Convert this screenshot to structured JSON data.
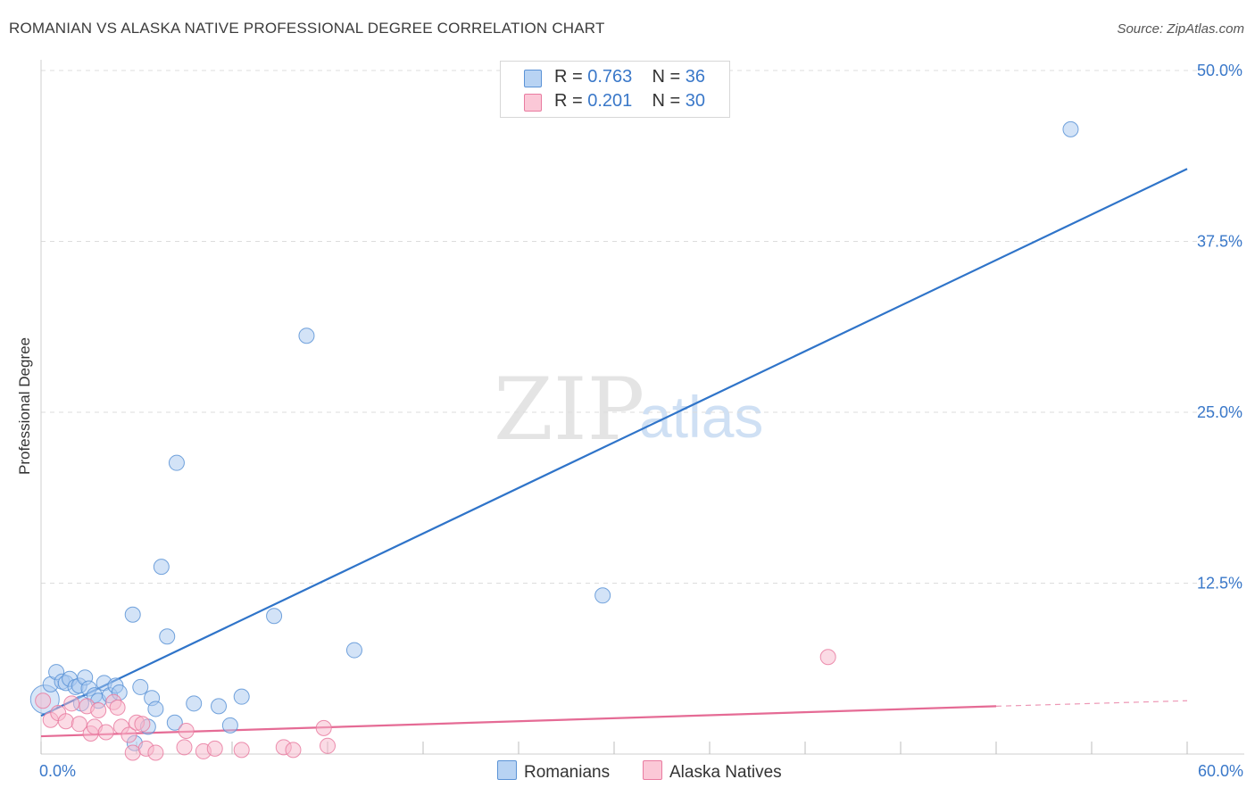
{
  "title": "ROMANIAN VS ALASKA NATIVE PROFESSIONAL DEGREE CORRELATION CHART",
  "source": "Source: ZipAtlas.com",
  "watermark": {
    "zip": "ZIP",
    "atlas": "atlas"
  },
  "legend_top": [
    {
      "r_label": "R = ",
      "r_value": "0.763",
      "n_label": "N = ",
      "n_value": "36"
    },
    {
      "r_label": "R = ",
      "r_value": "0.201",
      "n_label": "N = ",
      "n_value": "30"
    }
  ],
  "colors": {
    "blue_fill": "#a8c8ef",
    "blue_stroke": "#5b93d6",
    "blue_line": "#2f74c9",
    "pink_fill": "#f7b7cb",
    "pink_stroke": "#e97ba0",
    "pink_line": "#e56b95",
    "grid": "#dcdcdc",
    "tick_text": "#3a78c9"
  },
  "chart_data": {
    "type": "scatter",
    "title": "ROMANIAN VS ALASKA NATIVE PROFESSIONAL DEGREE CORRELATION CHART",
    "xlabel": "",
    "ylabel": "Professional Degree",
    "xlim": [
      0,
      60
    ],
    "ylim": [
      0,
      50
    ],
    "x_tick_labels": [
      "0.0%",
      "60.0%"
    ],
    "y_ticks": [
      12.5,
      25.0,
      37.5,
      50.0
    ],
    "y_tick_labels": [
      "12.5%",
      "25.0%",
      "37.5%",
      "50.0%"
    ],
    "legend_position": "top-center",
    "series": [
      {
        "name": "Romanians",
        "r": 0.763,
        "n": 36,
        "points": [
          [
            0.2,
            4.0
          ],
          [
            0.5,
            5.1
          ],
          [
            0.8,
            6.0
          ],
          [
            1.1,
            5.3
          ],
          [
            1.3,
            5.2
          ],
          [
            1.5,
            5.5
          ],
          [
            1.8,
            4.9
          ],
          [
            2.0,
            5.0
          ],
          [
            2.1,
            3.7
          ],
          [
            2.3,
            5.6
          ],
          [
            2.5,
            4.8
          ],
          [
            2.8,
            4.3
          ],
          [
            3.0,
            3.9
          ],
          [
            3.3,
            5.2
          ],
          [
            3.6,
            4.3
          ],
          [
            3.9,
            5.0
          ],
          [
            4.1,
            4.5
          ],
          [
            4.8,
            10.2
          ],
          [
            4.9,
            0.8
          ],
          [
            5.2,
            4.9
          ],
          [
            5.6,
            2.0
          ],
          [
            5.8,
            4.1
          ],
          [
            6.0,
            3.3
          ],
          [
            6.3,
            13.7
          ],
          [
            6.6,
            8.6
          ],
          [
            7.0,
            2.3
          ],
          [
            7.1,
            21.3
          ],
          [
            8.0,
            3.7
          ],
          [
            9.3,
            3.5
          ],
          [
            9.9,
            2.1
          ],
          [
            10.5,
            4.2
          ],
          [
            12.2,
            10.1
          ],
          [
            13.9,
            30.6
          ],
          [
            16.4,
            7.6
          ],
          [
            29.4,
            11.6
          ],
          [
            53.9,
            45.7
          ]
        ]
      },
      {
        "name": "Alaska Natives",
        "r": 0.201,
        "n": 30,
        "points": [
          [
            0.1,
            3.9
          ],
          [
            0.5,
            2.5
          ],
          [
            0.9,
            3.0
          ],
          [
            1.3,
            2.4
          ],
          [
            1.6,
            3.7
          ],
          [
            2.0,
            2.2
          ],
          [
            2.4,
            3.5
          ],
          [
            2.6,
            1.5
          ],
          [
            2.8,
            2.0
          ],
          [
            3.0,
            3.2
          ],
          [
            3.4,
            1.6
          ],
          [
            3.8,
            3.8
          ],
          [
            4.0,
            3.4
          ],
          [
            4.2,
            2.0
          ],
          [
            4.6,
            1.4
          ],
          [
            4.8,
            0.1
          ],
          [
            5.0,
            2.3
          ],
          [
            5.3,
            2.2
          ],
          [
            5.5,
            0.4
          ],
          [
            6.0,
            0.1
          ],
          [
            7.5,
            0.5
          ],
          [
            7.6,
            1.7
          ],
          [
            8.5,
            0.2
          ],
          [
            9.1,
            0.4
          ],
          [
            10.5,
            0.3
          ],
          [
            12.7,
            0.5
          ],
          [
            13.2,
            0.3
          ],
          [
            14.8,
            1.9
          ],
          [
            15.0,
            0.6
          ],
          [
            41.2,
            7.1
          ]
        ]
      }
    ],
    "trend_lines": [
      {
        "series": "Romanians",
        "x": [
          0,
          60
        ],
        "y": [
          2.8,
          42.8
        ]
      },
      {
        "series": "Alaska Natives",
        "x": [
          0,
          50
        ],
        "y": [
          1.3,
          3.5
        ],
        "dashed_to": [
          60,
          3.9
        ]
      }
    ],
    "grid": true
  },
  "bottom_legend": [
    {
      "label": "Romanians"
    },
    {
      "label": "Alaska Natives"
    }
  ]
}
